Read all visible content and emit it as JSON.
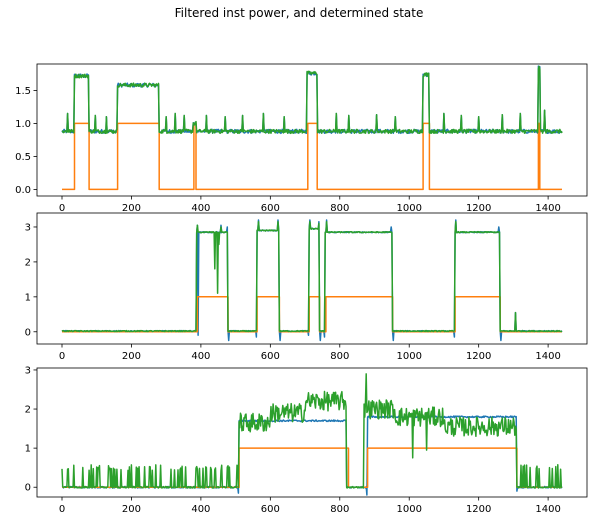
{
  "title": "Filtered inst power, and determined state",
  "colors": {
    "blue": "#1f77b4",
    "orange": "#ff7f0e",
    "green": "#2ca02c"
  },
  "chart_data": [
    {
      "type": "line",
      "xlim": [
        -72,
        1512
      ],
      "ylim": [
        -0.1,
        1.9
      ],
      "xticks": [
        0,
        200,
        400,
        600,
        800,
        1000,
        1200,
        1400
      ],
      "yticks": [
        0.0,
        0.5,
        1.0,
        1.5
      ],
      "ytick_labels": [
        "0.0",
        "0.5",
        "1.0",
        "1.5"
      ],
      "series": [
        {
          "color": "#1f77b4",
          "base": 0.88,
          "noise": 0.03,
          "segments": [
            [
              0,
              36,
              0.88
            ],
            [
              36,
              78,
              1.72
            ],
            [
              78,
              160,
              0.88
            ],
            [
              160,
              280,
              1.58
            ],
            [
              280,
              378,
              0.88
            ],
            [
              378,
              388,
              1.0
            ],
            [
              388,
              705,
              0.88
            ],
            [
              705,
              735,
              1.76
            ],
            [
              735,
              1040,
              0.88
            ],
            [
              1040,
              1058,
              1.74
            ],
            [
              1058,
              1372,
              0.88
            ],
            [
              1372,
              1378,
              1.84
            ],
            [
              1378,
              1440,
              0.88
            ]
          ],
          "spikes": [
            [
              15,
              1.15
            ],
            [
              95,
              1.12
            ],
            [
              128,
              1.1
            ],
            [
              300,
              1.1
            ],
            [
              325,
              1.15
            ],
            [
              352,
              1.12
            ],
            [
              415,
              1.12
            ],
            [
              470,
              1.1
            ],
            [
              520,
              1.12
            ],
            [
              580,
              1.15
            ],
            [
              640,
              1.1
            ],
            [
              790,
              1.15
            ],
            [
              825,
              1.12
            ],
            [
              905,
              1.13
            ],
            [
              960,
              1.1
            ],
            [
              1100,
              1.15
            ],
            [
              1150,
              1.12
            ],
            [
              1200,
              1.1
            ],
            [
              1268,
              1.13
            ],
            [
              1320,
              1.15
            ],
            [
              1390,
              1.2
            ]
          ]
        },
        {
          "color": "#ff7f0e",
          "steps": [
            [
              0,
              0
            ],
            [
              36,
              1
            ],
            [
              78,
              0
            ],
            [
              160,
              1
            ],
            [
              280,
              0
            ],
            [
              380,
              1
            ],
            [
              386,
              0
            ],
            [
              708,
              1
            ],
            [
              735,
              0
            ],
            [
              1040,
              1
            ],
            [
              1058,
              0
            ],
            [
              1372,
              1
            ],
            [
              1376,
              0
            ],
            [
              1440,
              0
            ]
          ]
        },
        {
          "color": "#2ca02c",
          "base": 0.88,
          "noise": 0.03,
          "segments": [
            [
              0,
              36,
              0.88
            ],
            [
              36,
              78,
              1.72
            ],
            [
              78,
              160,
              0.88
            ],
            [
              160,
              280,
              1.58
            ],
            [
              280,
              378,
              0.88
            ],
            [
              378,
              388,
              1.0
            ],
            [
              388,
              705,
              0.88
            ],
            [
              705,
              735,
              1.76
            ],
            [
              735,
              1040,
              0.88
            ],
            [
              1040,
              1058,
              1.74
            ],
            [
              1058,
              1372,
              0.88
            ],
            [
              1372,
              1378,
              1.84
            ],
            [
              1378,
              1440,
              0.88
            ]
          ],
          "spikes": [
            [
              15,
              1.15
            ],
            [
              95,
              1.12
            ],
            [
              128,
              1.1
            ],
            [
              300,
              1.1
            ],
            [
              325,
              1.15
            ],
            [
              352,
              1.12
            ],
            [
              415,
              1.12
            ],
            [
              470,
              1.1
            ],
            [
              520,
              1.12
            ],
            [
              580,
              1.15
            ],
            [
              640,
              1.1
            ],
            [
              790,
              1.15
            ],
            [
              825,
              1.12
            ],
            [
              905,
              1.13
            ],
            [
              960,
              1.1
            ],
            [
              1100,
              1.15
            ],
            [
              1150,
              1.12
            ],
            [
              1200,
              1.1
            ],
            [
              1268,
              1.13
            ],
            [
              1320,
              1.15
            ],
            [
              1390,
              1.2
            ]
          ]
        }
      ]
    },
    {
      "type": "line",
      "xlim": [
        -72,
        1512
      ],
      "ylim": [
        -0.35,
        3.4
      ],
      "xticks": [
        0,
        200,
        400,
        600,
        800,
        1000,
        1200,
        1400
      ],
      "yticks": [
        0,
        1,
        2,
        3
      ],
      "ytick_labels": [
        "0",
        "1",
        "2",
        "3"
      ],
      "series": [
        {
          "color": "#1f77b4",
          "noise": 0.015,
          "segments": [
            [
              0,
              388,
              0.02
            ],
            [
              388,
              478,
              2.85
            ],
            [
              478,
              562,
              0.02
            ],
            [
              562,
              626,
              2.9
            ],
            [
              626,
              712,
              0.02
            ],
            [
              712,
              742,
              2.95
            ],
            [
              742,
              758,
              0.02
            ],
            [
              758,
              952,
              2.85
            ],
            [
              952,
              1132,
              0.02
            ],
            [
              1132,
              1262,
              2.85
            ],
            [
              1262,
              1440,
              0.02
            ]
          ],
          "spikes": [
            [
              390,
              3.05
            ],
            [
              458,
              3.05
            ],
            [
              475,
              3.0
            ],
            [
              565,
              3.2
            ],
            [
              622,
              3.2
            ],
            [
              714,
              3.2
            ],
            [
              740,
              3.15
            ],
            [
              762,
              3.2
            ],
            [
              948,
              3.0
            ],
            [
              1134,
              3.2
            ],
            [
              1258,
              3.0
            ],
            [
              1305,
              0.55
            ],
            [
              391,
              -0.1
            ],
            [
              480,
              -0.25
            ],
            [
              560,
              -0.15
            ],
            [
              628,
              -0.25
            ],
            [
              710,
              -0.1
            ],
            [
              744,
              -0.25
            ],
            [
              756,
              -0.15
            ],
            [
              954,
              -0.25
            ],
            [
              1130,
              -0.15
            ],
            [
              1264,
              -0.25
            ]
          ]
        },
        {
          "color": "#ff7f0e",
          "steps": [
            [
              0,
              0
            ],
            [
              390,
              1
            ],
            [
              478,
              0
            ],
            [
              562,
              1
            ],
            [
              626,
              0
            ],
            [
              712,
              1
            ],
            [
              742,
              0
            ],
            [
              760,
              1
            ],
            [
              952,
              0
            ],
            [
              1132,
              1
            ],
            [
              1262,
              0
            ],
            [
              1440,
              0
            ]
          ]
        },
        {
          "color": "#2ca02c",
          "noise": 0.015,
          "segments": [
            [
              0,
              388,
              0.02
            ],
            [
              388,
              478,
              2.85
            ],
            [
              478,
              562,
              0.02
            ],
            [
              562,
              626,
              2.9
            ],
            [
              626,
              712,
              0.02
            ],
            [
              712,
              742,
              2.95
            ],
            [
              742,
              758,
              0.02
            ],
            [
              758,
              952,
              2.85
            ],
            [
              952,
              1132,
              0.02
            ],
            [
              1132,
              1262,
              2.85
            ],
            [
              1262,
              1440,
              0.02
            ]
          ],
          "spikes": [
            [
              390,
              3.05
            ],
            [
              440,
              1.8
            ],
            [
              448,
              1.1
            ],
            [
              452,
              2.5
            ],
            [
              458,
              3.0
            ],
            [
              565,
              3.15
            ],
            [
              622,
              3.15
            ],
            [
              714,
              3.15
            ],
            [
              740,
              3.1
            ],
            [
              762,
              3.15
            ],
            [
              1134,
              3.15
            ],
            [
              1305,
              0.55
            ]
          ]
        }
      ]
    },
    {
      "type": "line",
      "xlim": [
        -72,
        1512
      ],
      "ylim": [
        -0.25,
        3.05
      ],
      "xticks": [
        0,
        200,
        400,
        600,
        800,
        1000,
        1200,
        1400
      ],
      "yticks": [
        0,
        1,
        2,
        3
      ],
      "ytick_labels": [
        "0",
        "1",
        "2",
        "3"
      ],
      "series": [
        {
          "color": "#1f77b4",
          "noise": 0.02,
          "segments": [
            [
              0,
              510,
              0.0
            ],
            [
              510,
              820,
              1.7
            ],
            [
              820,
              880,
              0.0
            ],
            [
              880,
              1310,
              1.8
            ],
            [
              1310,
              1440,
              0.0
            ]
          ],
          "spikes": [
            [
              508,
              -0.15
            ],
            [
              878,
              -0.2
            ],
            [
              1310,
              -0.1
            ]
          ]
        },
        {
          "color": "#ff7f0e",
          "steps": [
            [
              0,
              0
            ],
            [
              510,
              1
            ],
            [
              825,
              0
            ],
            [
              880,
              1
            ],
            [
              1310,
              0
            ],
            [
              1440,
              0
            ]
          ]
        },
        {
          "color": "#2ca02c",
          "noise": 0.25,
          "segments": [
            [
              0,
              510,
              0.0
            ],
            [
              510,
              600,
              1.65
            ],
            [
              600,
              700,
              1.9
            ],
            [
              700,
              820,
              2.2
            ],
            [
              820,
              870,
              0.0
            ],
            [
              870,
              960,
              2.0
            ],
            [
              960,
              1100,
              1.8
            ],
            [
              1100,
              1310,
              1.55
            ],
            [
              1310,
              1440,
              0.0
            ]
          ],
          "burst": [
            [
              0,
              510
            ],
            [
              1310,
              1440
            ]
          ],
          "spikes": [
            [
              875,
              2.9
            ],
            [
              1010,
              0.75
            ],
            [
              1050,
              0.95
            ]
          ]
        }
      ]
    }
  ]
}
